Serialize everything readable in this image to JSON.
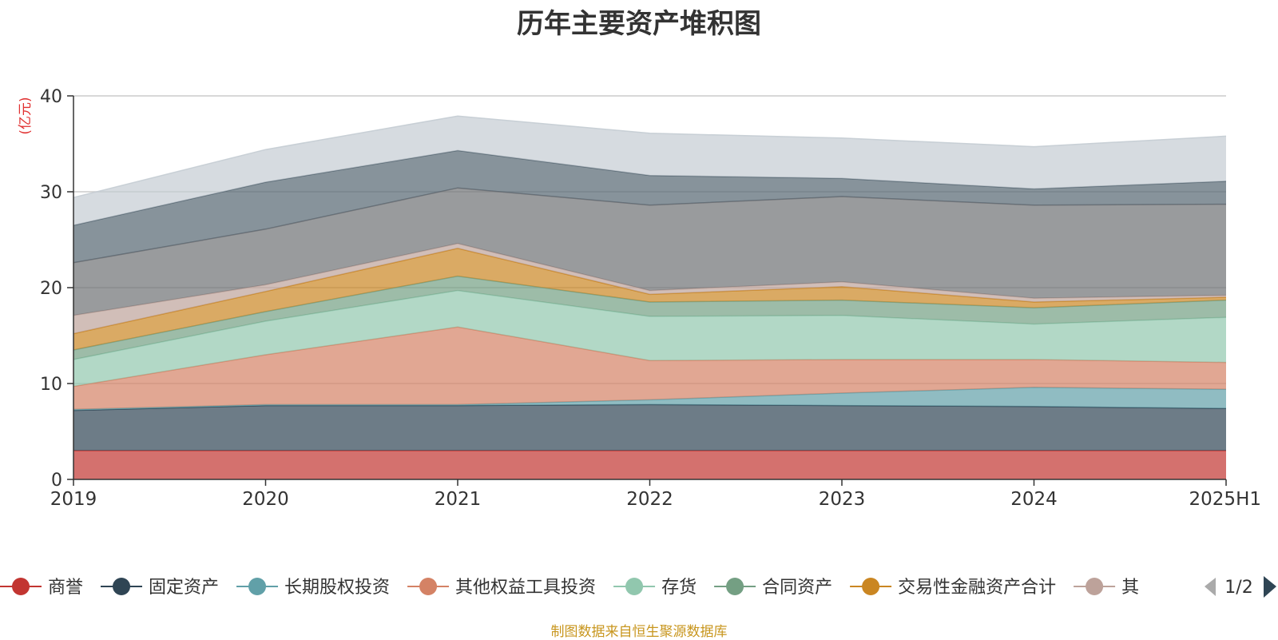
{
  "title": "历年主要资产堆积图",
  "source_note": "制图数据来自恒生聚源数据库",
  "legend": {
    "page_indicator": "1/2",
    "truncated_item_text": "其"
  },
  "chart_data": {
    "type": "area",
    "stacked": true,
    "title": "历年主要资产堆积图",
    "ylabel": "(亿元)",
    "ylim": [
      0,
      40
    ],
    "yticks": [
      0,
      10,
      20,
      30,
      40
    ],
    "categories": [
      "2019",
      "2020",
      "2021",
      "2022",
      "2023",
      "2024",
      "2025H1"
    ],
    "series": [
      {
        "name": "商誉",
        "color": "#c23531",
        "values": [
          3.0,
          3.0,
          3.0,
          3.0,
          3.0,
          3.0,
          3.0
        ]
      },
      {
        "name": "固定资产",
        "color": "#2f4554",
        "values": [
          4.2,
          4.7,
          4.7,
          4.8,
          4.7,
          4.6,
          4.4
        ]
      },
      {
        "name": "长期股权投资",
        "color": "#61a0a8",
        "values": [
          0.1,
          0.1,
          0.1,
          0.5,
          1.3,
          2.0,
          2.0
        ]
      },
      {
        "name": "其他权益工具投资",
        "color": "#d48265",
        "values": [
          2.4,
          5.2,
          8.1,
          4.1,
          3.5,
          2.9,
          2.8
        ]
      },
      {
        "name": "存货",
        "color": "#91c7ae",
        "values": [
          2.8,
          3.5,
          3.8,
          4.6,
          4.6,
          3.7,
          4.7
        ]
      },
      {
        "name": "合同资产",
        "color": "#749f83",
        "values": [
          1.0,
          1.0,
          1.5,
          1.5,
          1.6,
          1.7,
          1.8
        ]
      },
      {
        "name": "交易性金融资产合计",
        "color": "#ca8622",
        "values": [
          1.7,
          2.1,
          2.9,
          0.8,
          1.4,
          0.6,
          0.3
        ]
      },
      {
        "name": "其他",
        "color": "#bda29a",
        "values": [
          1.9,
          0.7,
          0.5,
          0.4,
          0.5,
          0.4,
          0.2
        ]
      },
      {
        "name": "",
        "color": "#6e7074",
        "values": [
          5.5,
          5.8,
          5.8,
          8.9,
          8.9,
          9.7,
          9.5
        ]
      },
      {
        "name": "",
        "color": "#546570",
        "values": [
          3.9,
          4.9,
          3.9,
          3.1,
          1.9,
          1.7,
          2.4
        ]
      },
      {
        "name": "",
        "color": "#c4ccd3",
        "values": [
          2.9,
          3.4,
          3.6,
          4.4,
          4.2,
          4.4,
          4.7
        ]
      }
    ],
    "legend_position": "bottom",
    "grid": true
  }
}
